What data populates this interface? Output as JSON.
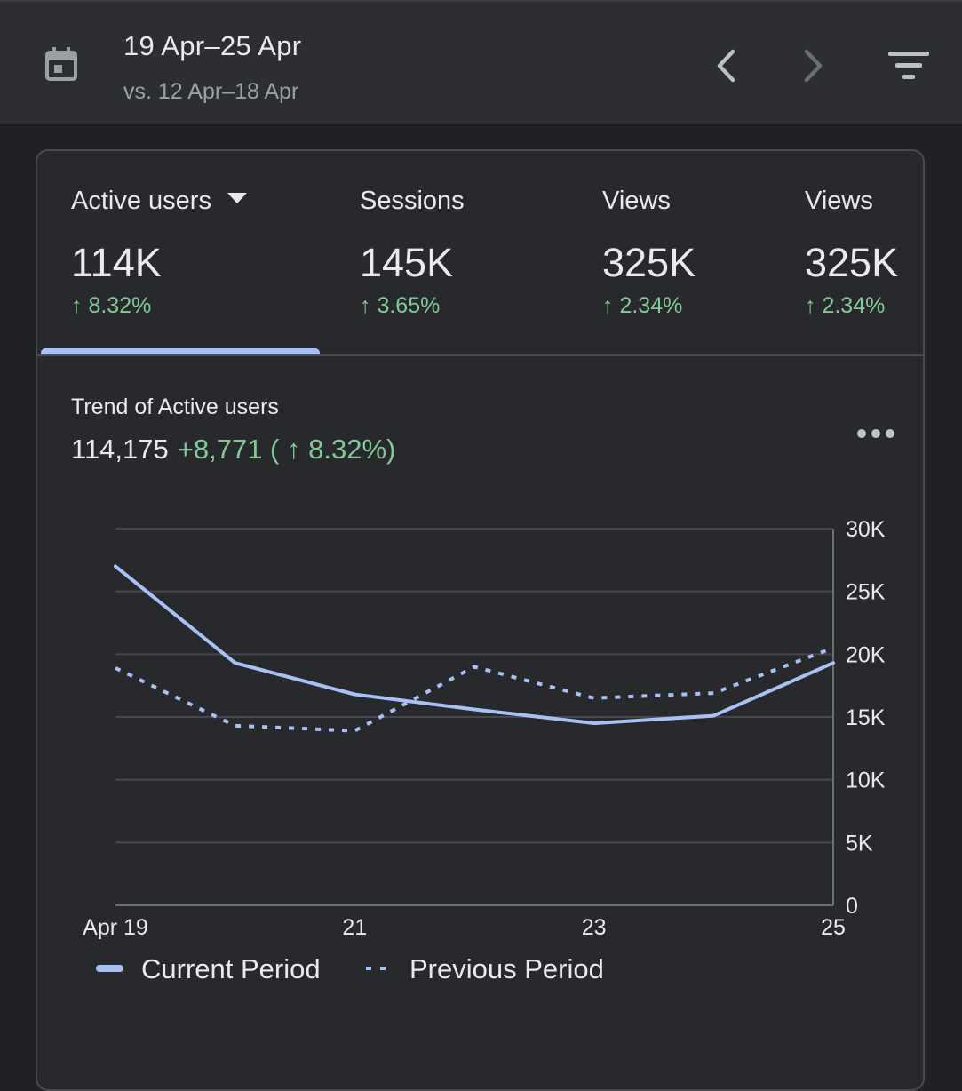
{
  "header": {
    "date_range": "19 Apr–25 Apr",
    "compare_range": "vs. 12 Apr–18 Apr"
  },
  "metrics": [
    {
      "label": "Active users",
      "value": "114K",
      "change": "↑ 8.32%"
    },
    {
      "label": "Sessions",
      "value": "145K",
      "change": "↑ 3.65%"
    },
    {
      "label": "Views",
      "value": "325K",
      "change": "↑ 2.34%"
    },
    {
      "label": "Views",
      "value": "325K",
      "change": "↑ 2.34%"
    }
  ],
  "trend": {
    "title": "Trend of Active users",
    "total": "114,175",
    "delta": "+8,771 ( ↑ 8.32%)"
  },
  "colors": {
    "accent": "#a8c1f5",
    "positive": "#81c995",
    "background": "#202124",
    "card": "#28292c"
  },
  "chart_data": {
    "type": "line",
    "title": "Trend of Active users",
    "x": [
      "Apr 19",
      "20",
      "21",
      "22",
      "23",
      "24",
      "25"
    ],
    "x_tick_labels": [
      "Apr 19",
      "21",
      "23",
      "25"
    ],
    "y_tick_labels": [
      "30K",
      "25K",
      "20K",
      "15K",
      "10K",
      "5K",
      "0"
    ],
    "ylim": [
      0,
      30000
    ],
    "series": [
      {
        "name": "Current Period",
        "style": "solid",
        "values": [
          27000,
          19300,
          16800,
          15600,
          14500,
          15100,
          19300
        ]
      },
      {
        "name": "Previous Period",
        "style": "dotted",
        "values": [
          18900,
          14300,
          13900,
          19000,
          16500,
          16900,
          20500
        ]
      }
    ],
    "legend": [
      "Current Period",
      "Previous Period"
    ],
    "legend_position": "bottom-left",
    "grid": true
  }
}
